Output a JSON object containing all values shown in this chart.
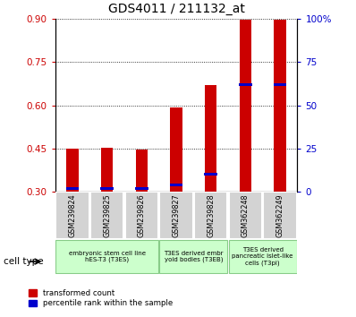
{
  "title": "GDS4011 / 211132_at",
  "categories": [
    "GSM239824",
    "GSM239825",
    "GSM239826",
    "GSM239827",
    "GSM239828",
    "GSM362248",
    "GSM362249"
  ],
  "red_values": [
    0.449,
    0.452,
    0.448,
    0.592,
    0.672,
    0.899,
    0.899
  ],
  "blue_values": [
    0.02,
    0.02,
    0.02,
    0.04,
    0.1,
    0.62,
    0.62
  ],
  "ylim_left": [
    0.3,
    0.9
  ],
  "yticks_left": [
    0.3,
    0.45,
    0.6,
    0.75,
    0.9
  ],
  "yticks_right": [
    0,
    25,
    50,
    75,
    100
  ],
  "left_color": "#cc0000",
  "right_color": "#0000cc",
  "bar_width": 0.35,
  "blue_bar_width": 0.38,
  "blue_bar_height": 0.01,
  "cell_type_groups": [
    {
      "label": "embryonic stem cell line\nhES-T3 (T3ES)",
      "start": 0,
      "end": 3
    },
    {
      "label": "T3ES derived embr\nyoid bodies (T3EB)",
      "start": 3,
      "end": 5
    },
    {
      "label": "T3ES derived\npancreatic islet-like\ncells (T3pi)",
      "start": 5,
      "end": 7
    }
  ],
  "legend_red": "transformed count",
  "legend_blue": "percentile rank within the sample",
  "cell_type_label": "cell type",
  "light_green": "#ccffcc",
  "green_edge": "#88cc88",
  "gray_color": "#d3d3d3"
}
